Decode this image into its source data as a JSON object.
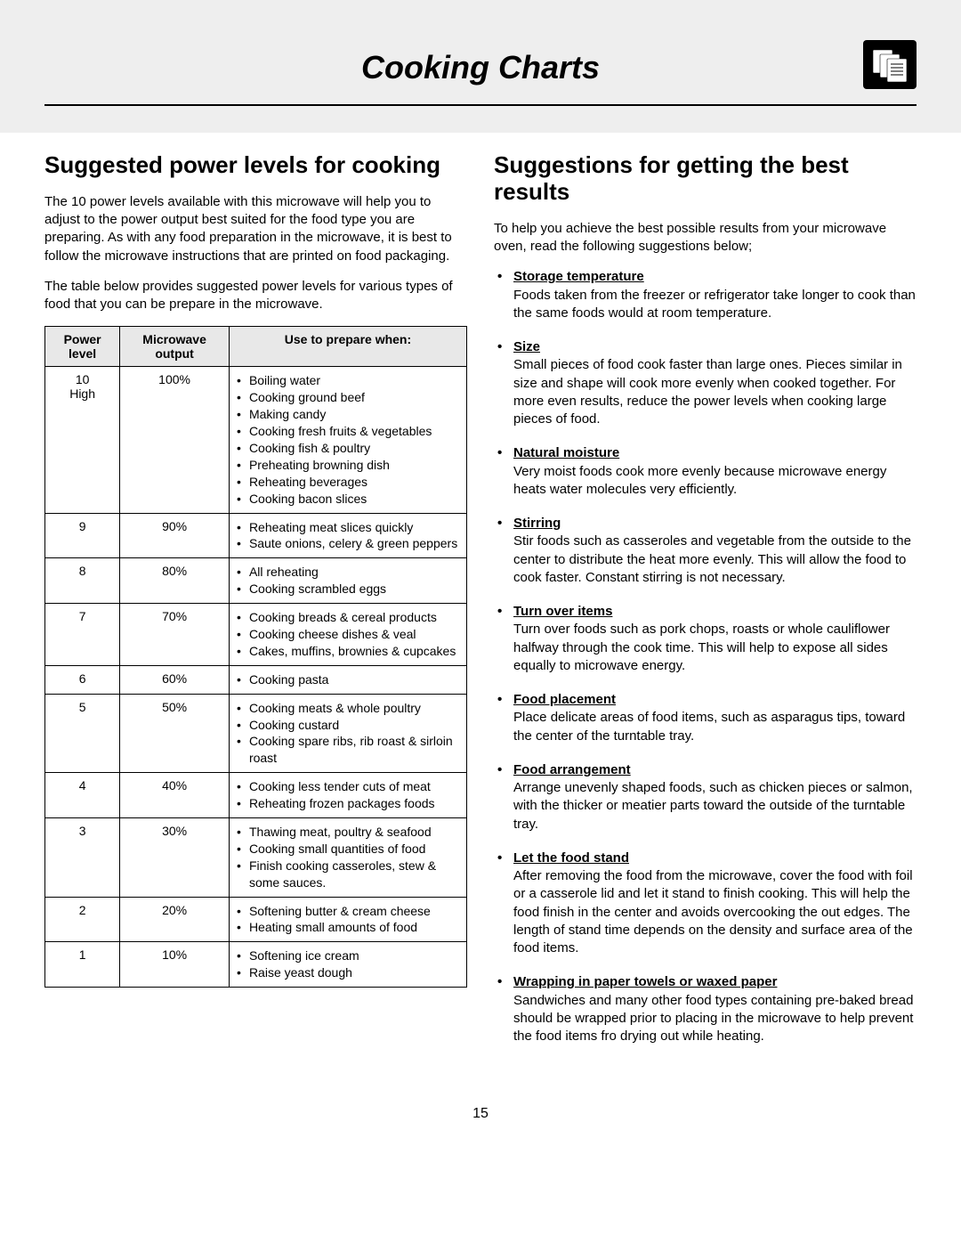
{
  "header": {
    "title": "Cooking Charts",
    "icon_name": "documents-icon"
  },
  "left": {
    "heading": "Suggested power levels for cooking",
    "intro1": "The 10 power levels available with this microwave will help you to adjust to the power output best suited for the food type you are preparing. As with any food preparation in the microwave, it is best to follow the microwave instructions that are printed on food packaging.",
    "intro2": "The table below provides suggested power levels for various types of food that you can be prepare in the microwave.",
    "table": {
      "columns": [
        "Power level",
        "Microwave output",
        "Use to prepare when:"
      ],
      "header_bg": "#e8e8e8",
      "border_color": "#000000",
      "rows": [
        {
          "level": "10\nHigh",
          "output": "100%",
          "uses": [
            "Boiling water",
            "Cooking ground beef",
            "Making candy",
            "Cooking fresh fruits & vegetables",
            "Cooking fish & poultry",
            "Preheating browning dish",
            "Reheating beverages",
            "Cooking bacon slices"
          ]
        },
        {
          "level": "9",
          "output": "90%",
          "uses": [
            "Reheating meat slices quickly",
            "Saute onions, celery & green peppers"
          ]
        },
        {
          "level": "8",
          "output": "80%",
          "uses": [
            "All reheating",
            "Cooking scrambled eggs"
          ]
        },
        {
          "level": "7",
          "output": "70%",
          "uses": [
            "Cooking breads & cereal products",
            "Cooking cheese dishes & veal",
            "Cakes, muffins, brownies & cupcakes"
          ]
        },
        {
          "level": "6",
          "output": "60%",
          "uses": [
            "Cooking pasta"
          ]
        },
        {
          "level": "5",
          "output": "50%",
          "uses": [
            "Cooking meats & whole poultry",
            "Cooking custard",
            "Cooking spare ribs, rib roast & sirloin roast"
          ]
        },
        {
          "level": "4",
          "output": "40%",
          "uses": [
            "Cooking less tender cuts of meat",
            "Reheating frozen packages foods"
          ]
        },
        {
          "level": "3",
          "output": "30%",
          "uses": [
            "Thawing meat, poultry & seafood",
            "Cooking small quantities of food",
            "Finish cooking casseroles, stew & some sauces."
          ]
        },
        {
          "level": "2",
          "output": "20%",
          "uses": [
            "Softening butter & cream cheese",
            "Heating small amounts of food"
          ]
        },
        {
          "level": "1",
          "output": "10%",
          "uses": [
            "Softening ice cream",
            "Raise yeast dough"
          ]
        }
      ]
    }
  },
  "right": {
    "heading": "Suggestions for getting the best results",
    "intro": "To help you achieve the best possible results from your microwave oven, read the following suggestions below;",
    "tips": [
      {
        "title": "Storage temperature",
        "body": "Foods taken from the freezer or refrigerator take longer to cook than the same foods would at room temperature."
      },
      {
        "title": "Size",
        "body": "Small pieces of food cook faster than large ones. Pieces similar in size and shape will cook more evenly when cooked together. For more even results, reduce the power levels when cooking large pieces of food."
      },
      {
        "title": "Natural moisture",
        "body": "Very moist foods cook more evenly because microwave energy heats water molecules very efficiently."
      },
      {
        "title": "Stirring",
        "body": "Stir foods such as casseroles and vegetable from the outside to the center to distribute the heat more evenly. This will allow the food to cook faster. Constant stirring is not necessary."
      },
      {
        "title": "Turn over items",
        "body": "Turn over foods such as pork chops, roasts or whole cauliflower halfway through the cook time. This will help to expose all sides equally to microwave energy."
      },
      {
        "title": "Food placement",
        "body": "Place delicate areas of food items, such as asparagus tips, toward the center of the turntable tray."
      },
      {
        "title": "Food arrangement",
        "body": "Arrange unevenly shaped foods, such as chicken pieces or salmon, with the thicker or meatier parts toward the outside of the turntable tray."
      },
      {
        "title": "Let the food stand",
        "body": "After removing the food from the microwave, cover the food with foil or a casserole lid and let it stand to finish cooking. This will help the food finish in the center and avoids overcooking the out edges. The length of stand time depends on the density and surface area of the food items."
      },
      {
        "title": "Wrapping in paper towels or waxed paper",
        "body": "Sandwiches and many other food types containing pre-baked bread should be wrapped prior to placing in the microwave to help prevent the food items fro drying out while heating."
      }
    ]
  },
  "page_number": "15",
  "colors": {
    "frame_bg": "#eeeeee",
    "page_bg": "#ffffff",
    "text": "#000000"
  }
}
